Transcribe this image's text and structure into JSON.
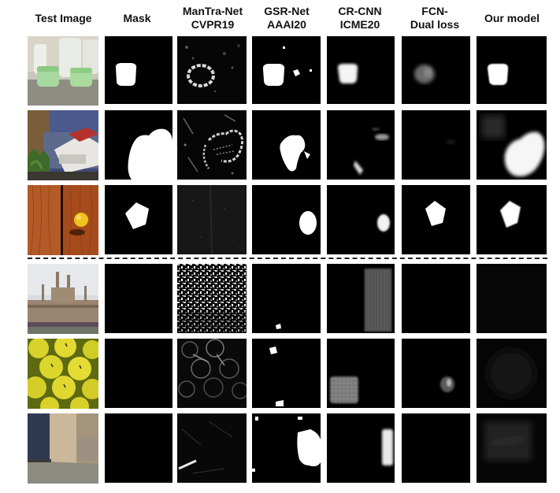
{
  "headers": [
    {
      "line1": "Test Image",
      "line2": ""
    },
    {
      "line1": "Mask",
      "line2": ""
    },
    {
      "line1": "ManTra-Net",
      "line2": "CVPR19"
    },
    {
      "line1": "GSR-Net",
      "line2": "AAAI20"
    },
    {
      "line1": "CR-CNN",
      "line2": "ICME20"
    },
    {
      "line1": "FCN-",
      "line2": "Dual loss"
    },
    {
      "line1": "Our model",
      "line2": ""
    }
  ],
  "rows": [
    {
      "group": "tampered",
      "scene": "kitchen-containers"
    },
    {
      "group": "tampered",
      "scene": "printer-room"
    },
    {
      "group": "tampered",
      "scene": "wood-door-lemon"
    },
    {
      "group": "authentic",
      "scene": "college-building"
    },
    {
      "group": "authentic",
      "scene": "yellow-apples"
    },
    {
      "group": "authentic",
      "scene": "hallway-corner"
    }
  ],
  "colors": {
    "background": "#ffffff",
    "mask_bg": "#000000",
    "mask_fg": "#ffffff",
    "separator": "#222222"
  }
}
